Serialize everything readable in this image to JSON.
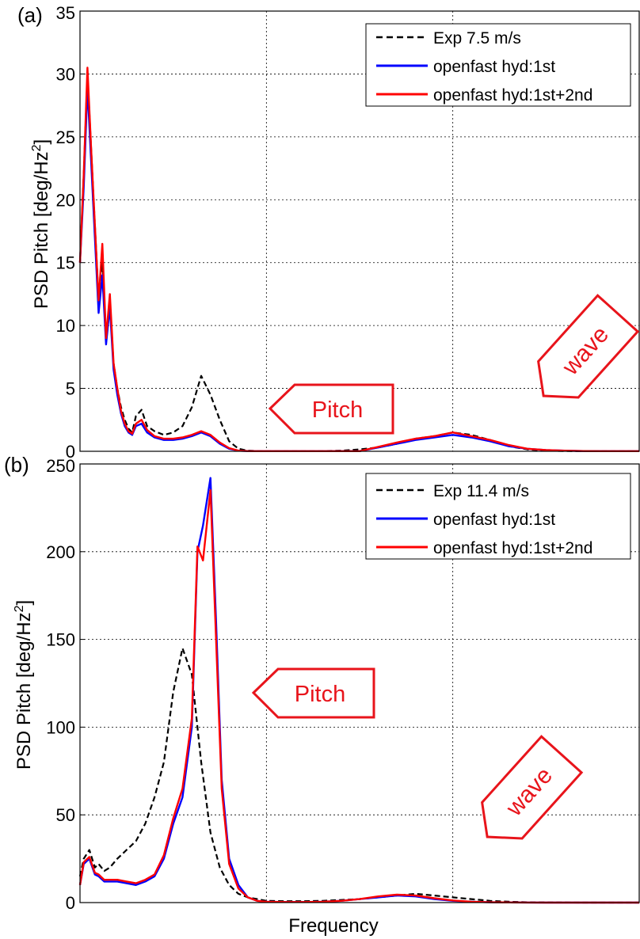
{
  "colors": {
    "exp": "#000000",
    "first": "#0000ff",
    "second": "#ff0000",
    "annotation": "#e8141b"
  },
  "chart_data": [
    {
      "type": "line",
      "panel_label": "(a)",
      "xlabel": "",
      "ylabel": "PSD Pitch [deg/Hz",
      "ylabel_sup": "2",
      "ylabel_close": "]",
      "ylim": [
        0,
        35
      ],
      "yticks": [
        0,
        5,
        10,
        15,
        20,
        25,
        30,
        35
      ],
      "xlim": [
        0,
        3
      ],
      "x_tick_labels_shown": false,
      "grid": true,
      "legend_position": "top-right",
      "annotations": [
        "Pitch",
        "wave"
      ],
      "series": [
        {
          "name": "Exp 7.5 m/s",
          "style": "dashed",
          "color": "#000000",
          "x": [
            0.0,
            0.02,
            0.04,
            0.06,
            0.08,
            0.1,
            0.12,
            0.14,
            0.16,
            0.18,
            0.2,
            0.22,
            0.24,
            0.26,
            0.28,
            0.3,
            0.33,
            0.36,
            0.4,
            0.45,
            0.5,
            0.55,
            0.6,
            0.65,
            0.7,
            0.75,
            0.8,
            0.85,
            0.9,
            0.95,
            1.0,
            1.05,
            1.1,
            1.15,
            1.2,
            1.3,
            1.4,
            1.5,
            1.6,
            1.7,
            1.8,
            1.9,
            2.0,
            2.1,
            2.2,
            2.3,
            2.4,
            2.5,
            2.6,
            2.7,
            2.8,
            2.9,
            3.0
          ],
          "y": [
            15,
            22,
            30,
            24,
            18,
            12,
            15,
            9,
            12,
            7,
            5,
            3.5,
            2.5,
            1.8,
            1.5,
            2.8,
            3.3,
            2,
            1.6,
            1.3,
            1.5,
            2,
            3.5,
            6,
            4.5,
            2.5,
            0.8,
            0.2,
            0.05,
            0.02,
            0.01,
            0.01,
            0.01,
            0.01,
            0.01,
            0.02,
            0.05,
            0.15,
            0.3,
            0.6,
            1.0,
            1.2,
            1.5,
            1.3,
            0.9,
            0.4,
            0.15,
            0.05,
            0.02,
            0.01,
            0.01,
            0.01,
            0.01
          ]
        },
        {
          "name": "openfast hyd:1st",
          "style": "solid",
          "color": "#0000ff",
          "x": [
            0.0,
            0.02,
            0.04,
            0.06,
            0.08,
            0.1,
            0.12,
            0.14,
            0.16,
            0.18,
            0.2,
            0.22,
            0.24,
            0.26,
            0.28,
            0.3,
            0.33,
            0.36,
            0.4,
            0.45,
            0.5,
            0.55,
            0.6,
            0.65,
            0.7,
            0.75,
            0.8,
            0.85,
            0.9,
            0.95,
            1.0,
            1.5,
            1.6,
            1.7,
            1.8,
            1.9,
            2.0,
            2.1,
            2.2,
            2.3,
            2.4,
            2.5,
            2.6,
            2.7,
            2.8,
            2.9,
            3.0
          ],
          "y": [
            15,
            21,
            29,
            23,
            17,
            11,
            14,
            8.5,
            11.5,
            6.5,
            4.5,
            3,
            2,
            1.5,
            1.3,
            2,
            2.2,
            1.5,
            1.1,
            0.9,
            0.9,
            1.0,
            1.2,
            1.5,
            1.2,
            0.6,
            0.2,
            0.05,
            0.02,
            0.01,
            0.01,
            0.01,
            0.3,
            0.6,
            0.9,
            1.1,
            1.3,
            1.1,
            0.8,
            0.4,
            0.2,
            0.1,
            0.05,
            0.02,
            0.01,
            0.01,
            0.01
          ]
        },
        {
          "name": "openfast hyd:1st+2nd",
          "style": "solid",
          "color": "#ff0000",
          "x": [
            0.0,
            0.02,
            0.04,
            0.06,
            0.08,
            0.1,
            0.12,
            0.14,
            0.16,
            0.18,
            0.2,
            0.22,
            0.24,
            0.26,
            0.28,
            0.3,
            0.33,
            0.36,
            0.4,
            0.45,
            0.5,
            0.55,
            0.6,
            0.65,
            0.7,
            0.75,
            0.8,
            0.85,
            0.9,
            0.95,
            1.0,
            1.5,
            1.6,
            1.7,
            1.8,
            1.9,
            2.0,
            2.1,
            2.2,
            2.3,
            2.4,
            2.5,
            2.6,
            2.7,
            2.8,
            2.9,
            3.0
          ],
          "y": [
            15,
            22,
            30.5,
            24,
            18,
            12,
            16.5,
            9,
            12.5,
            7,
            5,
            3.2,
            2.2,
            1.6,
            1.4,
            2.2,
            2.5,
            1.7,
            1.2,
            1.0,
            1.0,
            1.1,
            1.3,
            1.6,
            1.3,
            0.7,
            0.25,
            0.05,
            0.02,
            0.01,
            0.01,
            0.01,
            0.35,
            0.7,
            1.0,
            1.2,
            1.5,
            1.2,
            0.9,
            0.5,
            0.2,
            0.1,
            0.05,
            0.02,
            0.01,
            0.01,
            0.01
          ]
        }
      ]
    },
    {
      "type": "line",
      "panel_label": "(b)",
      "xlabel": "Frequency",
      "ylabel": "PSD Pitch [deg/Hz",
      "ylabel_sup": "2",
      "ylabel_close": "]",
      "ylim": [
        0,
        250
      ],
      "yticks": [
        0,
        50,
        100,
        150,
        200,
        250
      ],
      "xlim": [
        0,
        3
      ],
      "x_tick_labels_shown": false,
      "grid": true,
      "legend_position": "top-right",
      "annotations": [
        "Pitch",
        "wave"
      ],
      "series": [
        {
          "name": "Exp 11.4 m/s",
          "style": "dashed",
          "color": "#000000",
          "x": [
            0.0,
            0.02,
            0.05,
            0.08,
            0.1,
            0.13,
            0.16,
            0.2,
            0.25,
            0.3,
            0.35,
            0.4,
            0.45,
            0.5,
            0.55,
            0.6,
            0.65,
            0.7,
            0.75,
            0.8,
            0.85,
            0.9,
            0.95,
            1.0,
            1.1,
            1.2,
            1.3,
            1.4,
            1.5,
            1.6,
            1.7,
            1.8,
            1.9,
            2.0,
            2.1,
            2.2,
            2.3,
            2.4,
            2.5,
            2.6,
            2.7,
            2.8,
            2.9,
            3.0
          ],
          "y": [
            15,
            25,
            30,
            20,
            22,
            18,
            20,
            25,
            30,
            35,
            45,
            60,
            80,
            120,
            145,
            130,
            80,
            40,
            20,
            10,
            5,
            3,
            2,
            1,
            0.8,
            0.8,
            1,
            1.5,
            2,
            3,
            4,
            5,
            4,
            3,
            2,
            1,
            0.5,
            0.2,
            0.1,
            0.05,
            0.01,
            0.01,
            0.01,
            0.01
          ]
        },
        {
          "name": "openfast hyd:1st",
          "style": "solid",
          "color": "#0000ff",
          "x": [
            0.0,
            0.02,
            0.05,
            0.08,
            0.1,
            0.13,
            0.16,
            0.2,
            0.25,
            0.3,
            0.35,
            0.4,
            0.45,
            0.5,
            0.55,
            0.6,
            0.63,
            0.66,
            0.7,
            0.73,
            0.76,
            0.8,
            0.85,
            0.9,
            0.95,
            1.0,
            1.1,
            1.2,
            1.3,
            1.4,
            1.5,
            1.6,
            1.7,
            1.8,
            1.9,
            2.0,
            2.1,
            2.2,
            2.3,
            2.4,
            2.5,
            2.6,
            2.7,
            2.8,
            2.9,
            3.0
          ],
          "y": [
            10,
            22,
            25,
            16,
            15,
            12,
            12,
            12,
            11,
            10,
            12,
            15,
            25,
            45,
            60,
            100,
            200,
            215,
            242,
            160,
            70,
            25,
            10,
            3,
            1,
            0.5,
            0.3,
            0.3,
            0.5,
            1,
            2,
            3,
            4,
            3.5,
            2,
            1,
            0.5,
            0.2,
            0.1,
            0.05,
            0.01,
            0.01,
            0.01,
            0.01,
            0.01,
            0.01
          ]
        },
        {
          "name": "openfast hyd:1st+2nd",
          "style": "solid",
          "color": "#ff0000",
          "x": [
            0.0,
            0.02,
            0.05,
            0.08,
            0.1,
            0.13,
            0.16,
            0.2,
            0.25,
            0.3,
            0.35,
            0.4,
            0.45,
            0.5,
            0.55,
            0.6,
            0.63,
            0.66,
            0.7,
            0.73,
            0.76,
            0.8,
            0.85,
            0.9,
            0.95,
            1.0,
            1.1,
            1.2,
            1.3,
            1.4,
            1.5,
            1.6,
            1.7,
            1.8,
            1.9,
            2.0,
            2.1,
            2.2,
            2.3,
            2.4,
            2.5,
            2.6,
            2.7,
            2.8,
            2.9,
            3.0
          ],
          "y": [
            10,
            23,
            26,
            17,
            16,
            13,
            13,
            13,
            12,
            11,
            13,
            16,
            27,
            48,
            65,
            105,
            203,
            195,
            235,
            150,
            65,
            22,
            8,
            3,
            1,
            0.5,
            0.3,
            0.3,
            0.5,
            1,
            2,
            3.5,
            4.5,
            4,
            2.5,
            1.2,
            0.5,
            0.2,
            0.1,
            0.05,
            0.01,
            0.01,
            0.01,
            0.01,
            0.01,
            0.01
          ]
        }
      ]
    }
  ]
}
